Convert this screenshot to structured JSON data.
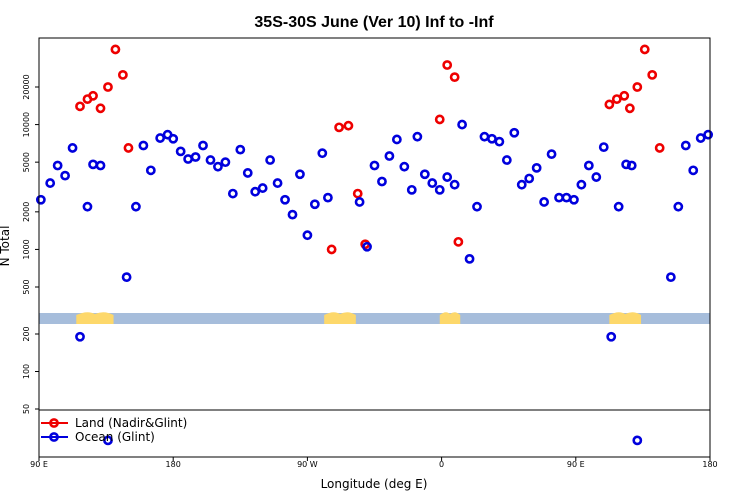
{
  "chart_data": {
    "type": "scatter",
    "title": "35S-30S June (Ver 10)   Inf to -Inf",
    "xlabel": "Longitude (deg E)",
    "ylabel": "N Total",
    "xlim": [
      90,
      450
    ],
    "x_tick_values": [
      90,
      162,
      234,
      306,
      378,
      450
    ],
    "x_tick_labels": [
      "90 E",
      "180",
      "90 W",
      "0",
      "90 E",
      "180"
    ],
    "y_ticks": [
      {
        "value": 20000,
        "label": "20000",
        "panel": "upper"
      },
      {
        "value": 10000,
        "label": "10000",
        "panel": "upper"
      },
      {
        "value": 5000,
        "label": "5000",
        "panel": "upper"
      },
      {
        "value": 2000,
        "label": "2000",
        "panel": "upper"
      },
      {
        "value": 1000,
        "label": "1000",
        "panel": "upper"
      },
      {
        "value": 500,
        "label": "500",
        "panel": "upper"
      },
      {
        "value": 200,
        "label": "200",
        "panel": "lower"
      },
      {
        "value": 100,
        "label": "100",
        "panel": "lower"
      },
      {
        "value": 50,
        "label": "50",
        "panel": "lower"
      }
    ],
    "land_colors": {
      "ocean": "#a6bddb",
      "land": "#fdd86b"
    },
    "land_segments": [
      [
        110,
        130
      ],
      [
        243,
        260
      ],
      [
        305,
        316
      ],
      [
        396,
        413
      ]
    ],
    "series": [
      {
        "name": "Land (Nadir&Glint)",
        "color": "#ee0000",
        "points": [
          [
            112,
            14000
          ],
          [
            116,
            16000
          ],
          [
            119,
            17000
          ],
          [
            123,
            13500
          ],
          [
            127,
            20000
          ],
          [
            131,
            40000
          ],
          [
            135,
            25000
          ],
          [
            138,
            6500
          ],
          [
            247,
            1000
          ],
          [
            251,
            9500
          ],
          [
            256,
            9800
          ],
          [
            261,
            2800
          ],
          [
            265,
            1100
          ],
          [
            305,
            11000
          ],
          [
            309,
            30000
          ],
          [
            313,
            24000
          ],
          [
            315,
            1150
          ],
          [
            396,
            14500
          ],
          [
            400,
            16000
          ],
          [
            404,
            17000
          ],
          [
            407,
            13500
          ],
          [
            411,
            20000
          ],
          [
            415,
            40000
          ],
          [
            419,
            25000
          ],
          [
            423,
            6500
          ]
        ]
      },
      {
        "name": "Ocean (Glint)",
        "color": "#0000dd",
        "points": [
          [
            91,
            2500
          ],
          [
            96,
            3400
          ],
          [
            100,
            4700
          ],
          [
            104,
            3900
          ],
          [
            108,
            6500
          ],
          [
            112,
            190
          ],
          [
            116,
            2200
          ],
          [
            119,
            4800
          ],
          [
            123,
            4700
          ],
          [
            127,
            28
          ],
          [
            137,
            600
          ],
          [
            142,
            2200
          ],
          [
            146,
            6800
          ],
          [
            150,
            4300
          ],
          [
            155,
            7800
          ],
          [
            159,
            8300
          ],
          [
            162,
            7700
          ],
          [
            166,
            6100
          ],
          [
            170,
            5300
          ],
          [
            174,
            5500
          ],
          [
            178,
            6800
          ],
          [
            182,
            5200
          ],
          [
            186,
            4600
          ],
          [
            190,
            5000
          ],
          [
            194,
            2800
          ],
          [
            198,
            6300
          ],
          [
            202,
            4100
          ],
          [
            206,
            2900
          ],
          [
            210,
            3100
          ],
          [
            214,
            5200
          ],
          [
            218,
            3400
          ],
          [
            222,
            2500
          ],
          [
            226,
            1900
          ],
          [
            230,
            4000
          ],
          [
            234,
            1300
          ],
          [
            238,
            2300
          ],
          [
            242,
            5900
          ],
          [
            245,
            2600
          ],
          [
            262,
            2400
          ],
          [
            266,
            1050
          ],
          [
            270,
            4700
          ],
          [
            274,
            3500
          ],
          [
            278,
            5600
          ],
          [
            282,
            7600
          ],
          [
            286,
            4600
          ],
          [
            290,
            3000
          ],
          [
            293,
            8000
          ],
          [
            297,
            4000
          ],
          [
            301,
            3400
          ],
          [
            305,
            3000
          ],
          [
            309,
            3800
          ],
          [
            313,
            3300
          ],
          [
            317,
            10000
          ],
          [
            321,
            840
          ],
          [
            325,
            2200
          ],
          [
            329,
            8000
          ],
          [
            333,
            7700
          ],
          [
            337,
            7300
          ],
          [
            341,
            5200
          ],
          [
            345,
            8600
          ],
          [
            349,
            3300
          ],
          [
            353,
            3700
          ],
          [
            357,
            4500
          ],
          [
            361,
            2400
          ],
          [
            365,
            5800
          ],
          [
            369,
            2600
          ],
          [
            373,
            2600
          ],
          [
            377,
            2500
          ],
          [
            381,
            3300
          ],
          [
            385,
            4700
          ],
          [
            389,
            3800
          ],
          [
            393,
            6600
          ],
          [
            397,
            190
          ],
          [
            401,
            2200
          ],
          [
            405,
            4800
          ],
          [
            408,
            4700
          ],
          [
            411,
            28
          ],
          [
            429,
            600
          ],
          [
            433,
            2200
          ],
          [
            437,
            6800
          ],
          [
            441,
            4300
          ],
          [
            445,
            7800
          ],
          [
            449,
            8300
          ]
        ]
      }
    ]
  }
}
